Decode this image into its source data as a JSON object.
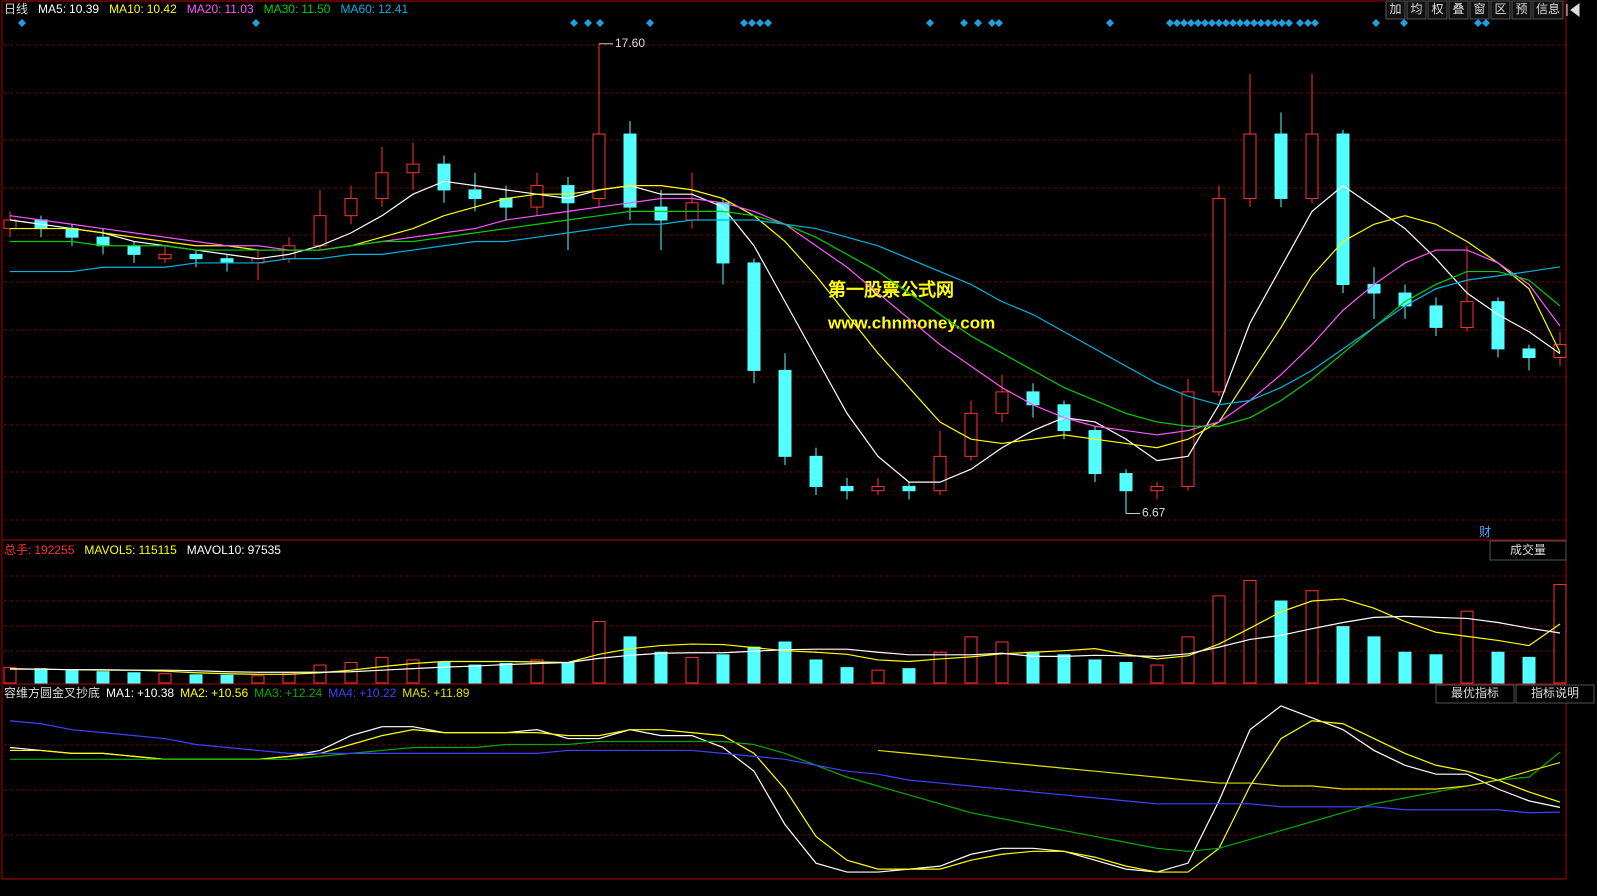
{
  "toolbar": [
    "加",
    "均",
    "权",
    "叠",
    "窗",
    "区",
    "预",
    "信息"
  ],
  "watermark": {
    "line1": "第一股票公式网",
    "line2": "www.chnmoney.com"
  },
  "chart_data": [
    {
      "type": "candlestick",
      "period": "日线",
      "finance_tag": "财",
      "max_label": "17.60",
      "min_label": "6.67",
      "up_color": "#ff3232",
      "down_color": "#54ffff",
      "ylim": [
        6.1,
        18.2
      ],
      "open": [
        13.3,
        13.5,
        13.3,
        13.1,
        12.9,
        12.6,
        12.7,
        12.6,
        12.5,
        12.6,
        12.9,
        13.6,
        14.0,
        14.6,
        14.8,
        14.2,
        14.0,
        13.8,
        14.3,
        14.0,
        15.5,
        13.8,
        13.5,
        13.9,
        12.5,
        10.0,
        8.0,
        7.3,
        7.2,
        7.3,
        7.2,
        8.0,
        9.0,
        9.5,
        9.2,
        8.6,
        7.6,
        7.2,
        7.3,
        9.5,
        14.0,
        15.5,
        14.0,
        15.5,
        12.0,
        11.8,
        11.5,
        11.0,
        11.6,
        10.5,
        10.3
      ],
      "high": [
        13.7,
        13.6,
        13.4,
        13.3,
        13.0,
        12.9,
        12.8,
        12.7,
        12.8,
        13.1,
        14.2,
        14.3,
        15.2,
        15.3,
        15.0,
        14.6,
        14.3,
        14.6,
        14.5,
        17.6,
        15.8,
        14.2,
        14.6,
        14.0,
        12.6,
        10.4,
        8.2,
        7.5,
        7.5,
        7.4,
        8.6,
        9.3,
        9.9,
        9.7,
        9.3,
        8.7,
        7.7,
        7.4,
        9.8,
        14.3,
        16.9,
        16.0,
        16.9,
        15.6,
        12.4,
        12.0,
        11.7,
        12.9,
        11.7,
        10.6,
        10.9
      ],
      "low": [
        13.1,
        13.1,
        12.9,
        12.7,
        12.5,
        12.5,
        12.4,
        12.3,
        12.1,
        12.5,
        12.8,
        13.4,
        13.8,
        14.2,
        13.9,
        13.7,
        13.5,
        13.6,
        12.8,
        13.8,
        13.5,
        12.8,
        13.3,
        12.0,
        9.7,
        7.8,
        7.1,
        7.0,
        7.1,
        7.0,
        7.1,
        7.9,
        8.8,
        8.9,
        8.4,
        7.4,
        6.67,
        7.0,
        7.2,
        9.4,
        13.8,
        13.8,
        13.9,
        11.8,
        11.2,
        11.2,
        10.8,
        10.9,
        10.3,
        10.0,
        10.1
      ],
      "close": [
        13.5,
        13.3,
        13.1,
        12.9,
        12.7,
        12.7,
        12.6,
        12.5,
        12.6,
        12.9,
        13.6,
        14.0,
        14.6,
        14.8,
        14.2,
        14.0,
        13.8,
        14.3,
        13.9,
        15.5,
        13.8,
        13.5,
        13.9,
        12.5,
        10.0,
        8.0,
        7.3,
        7.2,
        7.3,
        7.2,
        8.0,
        9.0,
        9.5,
        9.2,
        8.6,
        7.6,
        7.2,
        7.3,
        9.5,
        14.0,
        15.5,
        14.0,
        15.5,
        12.0,
        11.8,
        11.5,
        11.0,
        11.6,
        10.5,
        10.3,
        10.6
      ],
      "series": [
        {
          "name": "MA5:",
          "color": "#ffffff",
          "last_label": "10.39",
          "values": [
            13.5,
            13.4,
            13.3,
            13.2,
            13.0,
            12.9,
            12.8,
            12.7,
            12.6,
            12.7,
            12.9,
            13.2,
            13.6,
            14.1,
            14.4,
            14.3,
            14.2,
            14.1,
            14.0,
            14.2,
            14.3,
            14.1,
            14.1,
            13.8,
            12.9,
            11.6,
            10.3,
            9.0,
            8.0,
            7.4,
            7.4,
            7.7,
            8.2,
            8.6,
            8.9,
            8.8,
            8.4,
            7.9,
            8.0,
            9.2,
            11.1,
            12.4,
            13.7,
            14.3,
            13.8,
            13.3,
            12.6,
            11.8,
            11.3,
            10.9,
            10.39
          ]
        },
        {
          "name": "MA10:",
          "color": "#ffff00",
          "last_label": "10.42",
          "values": [
            13.3,
            13.3,
            13.3,
            13.2,
            13.1,
            13.0,
            12.9,
            12.9,
            12.8,
            12.8,
            12.8,
            12.9,
            13.1,
            13.3,
            13.6,
            13.8,
            14.0,
            14.1,
            14.1,
            14.2,
            14.3,
            14.3,
            14.2,
            14.0,
            13.6,
            13.0,
            12.2,
            11.3,
            10.4,
            9.6,
            8.8,
            8.4,
            8.3,
            8.4,
            8.5,
            8.4,
            8.3,
            8.2,
            8.4,
            8.8,
            9.9,
            11.0,
            12.2,
            13.0,
            13.4,
            13.6,
            13.4,
            13.0,
            12.5,
            11.9,
            10.42
          ]
        },
        {
          "name": "MA20:",
          "color": "#ff55ff",
          "last_label": "11.03",
          "values": [
            13.6,
            13.5,
            13.4,
            13.3,
            13.2,
            13.1,
            13.0,
            12.9,
            12.9,
            12.8,
            12.8,
            12.9,
            13.0,
            13.1,
            13.2,
            13.3,
            13.5,
            13.6,
            13.7,
            13.8,
            13.9,
            14.0,
            14.0,
            13.9,
            13.7,
            13.4,
            12.9,
            12.4,
            11.8,
            11.2,
            10.6,
            10.1,
            9.6,
            9.2,
            8.9,
            8.7,
            8.6,
            8.5,
            8.6,
            8.8,
            9.3,
            9.9,
            10.6,
            11.4,
            12.0,
            12.5,
            12.8,
            12.8,
            12.5,
            12.0,
            11.03
          ]
        },
        {
          "name": "MA30:",
          "color": "#00d000",
          "last_label": "11.50",
          "values": [
            13.0,
            13.0,
            13.0,
            12.9,
            12.9,
            12.9,
            12.8,
            12.8,
            12.8,
            12.8,
            12.8,
            12.9,
            13.0,
            13.0,
            13.1,
            13.2,
            13.3,
            13.4,
            13.5,
            13.6,
            13.7,
            13.7,
            13.7,
            13.7,
            13.6,
            13.4,
            13.1,
            12.7,
            12.3,
            11.8,
            11.3,
            10.8,
            10.4,
            10.0,
            9.6,
            9.3,
            9.0,
            8.8,
            8.7,
            8.7,
            8.9,
            9.3,
            9.8,
            10.4,
            11.0,
            11.6,
            12.0,
            12.3,
            12.3,
            12.1,
            11.5
          ]
        },
        {
          "name": "MA60:",
          "color": "#00b4dc",
          "last_label": "12.41",
          "values": [
            12.3,
            12.3,
            12.3,
            12.4,
            12.4,
            12.4,
            12.5,
            12.5,
            12.5,
            12.6,
            12.6,
            12.7,
            12.7,
            12.8,
            12.9,
            13.0,
            13.0,
            13.1,
            13.2,
            13.3,
            13.4,
            13.4,
            13.5,
            13.5,
            13.5,
            13.4,
            13.3,
            13.1,
            12.9,
            12.6,
            12.3,
            12.0,
            11.6,
            11.3,
            10.9,
            10.5,
            10.1,
            9.7,
            9.4,
            9.2,
            9.3,
            9.6,
            10.0,
            10.5,
            11.0,
            11.5,
            11.9,
            12.1,
            12.2,
            12.3,
            12.41
          ]
        }
      ]
    },
    {
      "type": "bar",
      "title": "成交量",
      "name": "总手:",
      "name_color": "#ff3232",
      "ylim": [
        0,
        240000
      ],
      "values": [
        30000,
        28000,
        25000,
        22000,
        20000,
        18000,
        16000,
        15000,
        14000,
        20000,
        35000,
        40000,
        50000,
        45000,
        40000,
        35000,
        38000,
        45000,
        40000,
        120000,
        90000,
        60000,
        50000,
        55000,
        70000,
        80000,
        45000,
        30000,
        25000,
        28000,
        60000,
        90000,
        80000,
        60000,
        55000,
        45000,
        40000,
        35000,
        90000,
        170000,
        200000,
        160000,
        180000,
        110000,
        90000,
        60000,
        55000,
        140000,
        60000,
        50000,
        192255
      ],
      "series": [
        {
          "name": "MAVOL5:",
          "color": "#ffff00",
          "values": [
            28000,
            27000,
            26000,
            25000,
            25000,
            23000,
            20000,
            18000,
            17000,
            17000,
            20000,
            25000,
            32000,
            38000,
            42000,
            42000,
            42000,
            41000,
            40000,
            56000,
            67000,
            73000,
            76000,
            75000,
            69000,
            63000,
            60000,
            56000,
            45000,
            42000,
            47000,
            51000,
            57000,
            60000,
            63000,
            67000,
            56000,
            47000,
            53000,
            76000,
            107000,
            139000,
            160000,
            164000,
            146000,
            120000,
            99000,
            91000,
            83000,
            73000,
            115115
          ]
        },
        {
          "name": "MAVOL10:",
          "color": "#ffffff",
          "values": [
            27000,
            27000,
            26000,
            26000,
            25000,
            25000,
            24000,
            22000,
            21000,
            21000,
            21000,
            22000,
            25000,
            28000,
            31000,
            33000,
            36000,
            38000,
            40000,
            48000,
            54000,
            58000,
            59000,
            59000,
            62000,
            65000,
            66000,
            66000,
            60000,
            55000,
            55000,
            55000,
            58000,
            52000,
            52000,
            54000,
            53000,
            52000,
            57000,
            70000,
            85000,
            93000,
            106000,
            118000,
            128000,
            130000,
            128000,
            126000,
            118000,
            107000,
            97535
          ]
        }
      ]
    },
    {
      "type": "line",
      "title": "容维方圆金叉抄底",
      "buttons": [
        "最优指标",
        "指标说明"
      ],
      "ylim": [
        8,
        14
      ],
      "series": [
        {
          "name": "MA1:",
          "color": "#ffffff",
          "last_label": "+10.38",
          "values": [
            12.4,
            12.3,
            12.2,
            12.2,
            12.1,
            12.0,
            12.0,
            12.0,
            12.0,
            12.1,
            12.3,
            12.8,
            13.1,
            13.1,
            12.9,
            12.9,
            12.9,
            13.0,
            12.7,
            12.7,
            13.0,
            12.8,
            12.8,
            12.4,
            11.6,
            9.8,
            8.5,
            8.2,
            8.2,
            8.3,
            8.4,
            8.8,
            9.0,
            9.0,
            8.9,
            8.6,
            8.3,
            8.2,
            8.5,
            10.6,
            13.0,
            13.8,
            13.4,
            13.0,
            12.3,
            11.8,
            11.5,
            11.5,
            11.0,
            10.6,
            10.38
          ]
        },
        {
          "name": "MA2:",
          "color": "#ffff00",
          "last_label": "+10.56",
          "values": [
            12.3,
            12.3,
            12.2,
            12.2,
            12.1,
            12.0,
            12.0,
            12.0,
            12.0,
            12.1,
            12.2,
            12.5,
            12.8,
            13.0,
            12.9,
            12.9,
            12.9,
            12.9,
            12.8,
            12.8,
            13.0,
            13.0,
            12.9,
            12.8,
            12.2,
            11.0,
            9.4,
            8.6,
            8.3,
            8.3,
            8.3,
            8.6,
            8.8,
            8.9,
            8.9,
            8.7,
            8.4,
            8.2,
            8.2,
            9.0,
            11.1,
            12.7,
            13.3,
            13.2,
            12.7,
            12.2,
            11.8,
            11.6,
            11.3,
            10.9,
            10.56
          ]
        },
        {
          "name": "MA3:",
          "color": "#00aa00",
          "last_label": "+12.24",
          "values": [
            12.0,
            12.0,
            12.0,
            12.0,
            12.0,
            12.0,
            12.0,
            12.0,
            12.0,
            12.0,
            12.1,
            12.2,
            12.3,
            12.4,
            12.4,
            12.4,
            12.5,
            12.5,
            12.5,
            12.6,
            12.6,
            12.6,
            12.6,
            12.6,
            12.5,
            12.2,
            11.8,
            11.4,
            11.1,
            10.8,
            10.5,
            10.2,
            10.0,
            9.8,
            9.6,
            9.4,
            9.2,
            9.0,
            8.9,
            9.0,
            9.3,
            9.6,
            9.9,
            10.2,
            10.5,
            10.7,
            10.9,
            11.1,
            11.3,
            11.4,
            12.24
          ]
        },
        {
          "name": "MA4:",
          "color": "#4040ff",
          "last_label": "+10.22",
          "values": [
            13.3,
            13.2,
            13.0,
            12.9,
            12.8,
            12.7,
            12.5,
            12.4,
            12.3,
            12.2,
            12.2,
            12.2,
            12.2,
            12.2,
            12.2,
            12.2,
            12.2,
            12.2,
            12.3,
            12.3,
            12.3,
            12.3,
            12.3,
            12.2,
            12.1,
            12.0,
            11.8,
            11.6,
            11.5,
            11.3,
            11.2,
            11.1,
            11.0,
            10.9,
            10.8,
            10.7,
            10.6,
            10.5,
            10.5,
            10.5,
            10.5,
            10.4,
            10.4,
            10.4,
            10.4,
            10.3,
            10.3,
            10.3,
            10.3,
            10.2,
            10.22
          ]
        },
        {
          "name": "MA5:",
          "color": "#e0e000",
          "last_label": "+11.89",
          "values": [
            null,
            null,
            null,
            null,
            null,
            null,
            null,
            null,
            null,
            null,
            null,
            null,
            null,
            null,
            null,
            null,
            null,
            null,
            null,
            null,
            null,
            null,
            null,
            null,
            null,
            null,
            null,
            null,
            12.3,
            12.2,
            12.1,
            12.0,
            11.9,
            11.8,
            11.7,
            11.6,
            11.5,
            11.4,
            11.3,
            11.2,
            11.2,
            11.1,
            11.1,
            11.0,
            11.0,
            11.0,
            11.0,
            11.1,
            11.3,
            11.6,
            11.89
          ]
        }
      ]
    }
  ]
}
